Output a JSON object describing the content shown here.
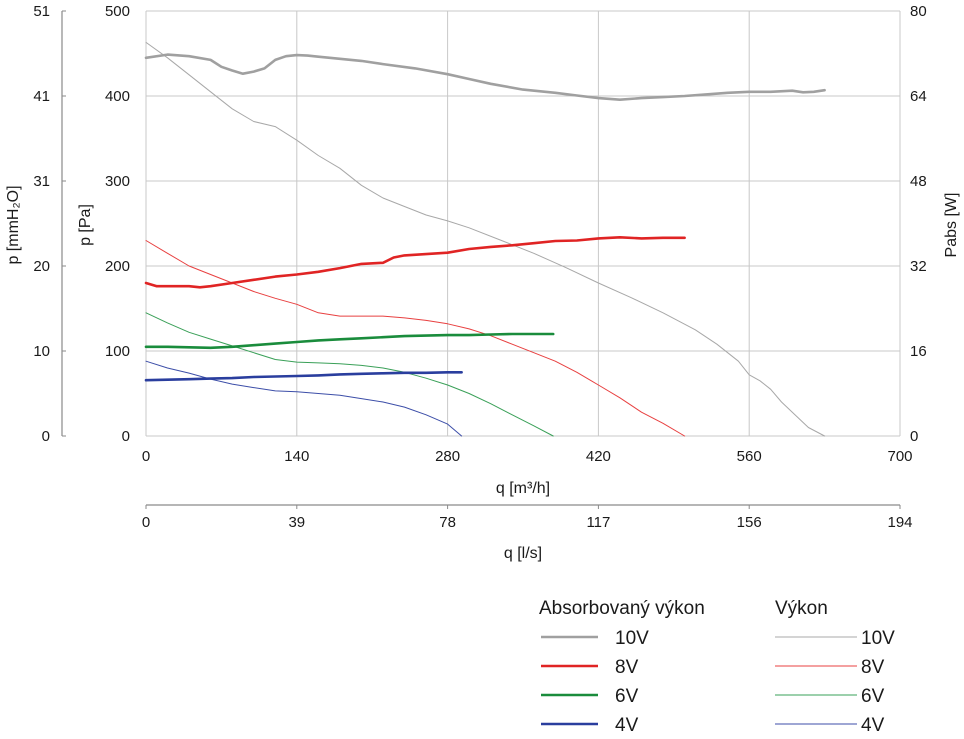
{
  "chart_data": {
    "type": "line",
    "axes": {
      "x_primary": {
        "label": "q [m³/h]",
        "ticks": [
          "0",
          "140",
          "280",
          "420",
          "560",
          "700"
        ],
        "range": [
          0,
          700
        ]
      },
      "x_secondary": {
        "label": "q [l/s]",
        "ticks": [
          "0",
          "39",
          "78",
          "117",
          "156",
          "194"
        ],
        "range": [
          0,
          194
        ]
      },
      "y_pa": {
        "label": "p [Pa]",
        "ticks": [
          "0",
          "100",
          "200",
          "300",
          "400",
          "500"
        ],
        "range": [
          0,
          500
        ]
      },
      "y_mmh2o": {
        "label": "p [mmH₂O]",
        "ticks": [
          "0",
          "10",
          "20",
          "31",
          "41",
          "51"
        ]
      },
      "y_w": {
        "label": "Pabs [W]",
        "ticks": [
          "0",
          "16",
          "32",
          "48",
          "64",
          "80"
        ],
        "range": [
          0,
          80
        ]
      }
    },
    "grid": true,
    "legend": {
      "titles": [
        "Absorbovaný výkon",
        "Výkon"
      ],
      "absorbed_labels": [
        "10V",
        "8V",
        "6V",
        "4V"
      ],
      "pressure_labels": [
        "10V",
        "8V",
        "6V",
        "4V"
      ]
    },
    "series": [
      {
        "name": "10V",
        "group": "absorbed",
        "axis": "W",
        "color": "#a0a0a0",
        "x": [
          0,
          20,
          40,
          60,
          70,
          80,
          90,
          100,
          110,
          120,
          130,
          140,
          150,
          160,
          180,
          200,
          220,
          250,
          280,
          300,
          320,
          350,
          380,
          400,
          420,
          440,
          460,
          480,
          500,
          520,
          540,
          560,
          580,
          600,
          610,
          620,
          630
        ],
        "y": [
          71.2,
          71.8,
          71.5,
          70.8,
          69.5,
          68.8,
          68.2,
          68.6,
          69.2,
          70.8,
          71.5,
          71.7,
          71.6,
          71.4,
          71.0,
          70.6,
          70.0,
          69.2,
          68.1,
          67.2,
          66.3,
          65.2,
          64.6,
          64.1,
          63.6,
          63.3,
          63.6,
          63.8,
          64.0,
          64.3,
          64.6,
          64.8,
          64.8,
          65.0,
          64.7,
          64.8,
          65.1
        ]
      },
      {
        "name": "8V",
        "group": "absorbed",
        "axis": "W",
        "color": "#e02424",
        "x": [
          0,
          10,
          20,
          40,
          50,
          60,
          80,
          100,
          120,
          140,
          160,
          180,
          200,
          220,
          230,
          240,
          280,
          300,
          320,
          340,
          360,
          380,
          400,
          420,
          440,
          460,
          480,
          500
        ],
        "y": [
          28.8,
          28.2,
          28.2,
          28.2,
          28.0,
          28.2,
          28.8,
          29.4,
          30.0,
          30.4,
          30.9,
          31.6,
          32.4,
          32.6,
          33.6,
          34.0,
          34.5,
          35.2,
          35.6,
          35.9,
          36.3,
          36.7,
          36.8,
          37.2,
          37.4,
          37.2,
          37.3,
          37.3
        ]
      },
      {
        "name": "6V",
        "group": "absorbed",
        "axis": "W",
        "color": "#1a8c3c",
        "x": [
          0,
          20,
          40,
          60,
          80,
          100,
          120,
          140,
          160,
          180,
          200,
          220,
          240,
          260,
          280,
          300,
          320,
          340,
          360,
          378
        ],
        "y": [
          16.8,
          16.8,
          16.7,
          16.6,
          16.8,
          17.1,
          17.4,
          17.7,
          18.0,
          18.2,
          18.4,
          18.6,
          18.8,
          18.9,
          19.0,
          19.0,
          19.1,
          19.2,
          19.2,
          19.2
        ]
      },
      {
        "name": "4V",
        "group": "absorbed",
        "axis": "W",
        "color": "#2a3e9e",
        "x": [
          0,
          20,
          40,
          60,
          80,
          100,
          120,
          140,
          160,
          180,
          200,
          220,
          240,
          260,
          280,
          293
        ],
        "y": [
          10.5,
          10.6,
          10.7,
          10.8,
          10.9,
          11.1,
          11.2,
          11.3,
          11.4,
          11.6,
          11.7,
          11.8,
          11.9,
          11.9,
          12.0,
          12.0
        ]
      },
      {
        "name": "10V",
        "group": "pressure",
        "axis": "Pa",
        "color": "#a8a8a8",
        "x": [
          0,
          20,
          40,
          60,
          80,
          100,
          120,
          140,
          160,
          180,
          200,
          220,
          240,
          260,
          280,
          300,
          330,
          360,
          390,
          420,
          450,
          480,
          510,
          530,
          550,
          560,
          570,
          580,
          590,
          600,
          615,
          630
        ],
        "y": [
          463,
          445,
          425,
          405,
          385,
          370,
          364,
          348,
          330,
          315,
          295,
          280,
          270,
          260,
          253,
          245,
          230,
          215,
          198,
          180,
          163,
          145,
          125,
          108,
          88,
          72,
          65,
          55,
          40,
          28,
          10,
          0
        ]
      },
      {
        "name": "8V",
        "group": "pressure",
        "axis": "Pa",
        "color": "#e84040",
        "x": [
          0,
          20,
          40,
          60,
          80,
          100,
          120,
          140,
          160,
          180,
          200,
          220,
          240,
          260,
          280,
          300,
          320,
          340,
          360,
          380,
          400,
          420,
          440,
          460,
          480,
          500
        ],
        "y": [
          230,
          215,
          200,
          190,
          180,
          170,
          162,
          155,
          145,
          141,
          141,
          141,
          139,
          136,
          132,
          126,
          118,
          108,
          98,
          88,
          75,
          60,
          45,
          28,
          15,
          0
        ]
      },
      {
        "name": "6V",
        "group": "pressure",
        "axis": "Pa",
        "color": "#3aa058",
        "x": [
          0,
          20,
          40,
          60,
          80,
          100,
          120,
          140,
          160,
          180,
          200,
          220,
          240,
          260,
          280,
          300,
          320,
          340,
          360,
          378
        ],
        "y": [
          145,
          133,
          122,
          114,
          106,
          98,
          90,
          87,
          86,
          85,
          83,
          80,
          75,
          68,
          60,
          50,
          38,
          25,
          12,
          0
        ]
      },
      {
        "name": "4V",
        "group": "pressure",
        "axis": "Pa",
        "color": "#3c4ea8",
        "x": [
          0,
          20,
          40,
          60,
          80,
          100,
          120,
          140,
          160,
          180,
          200,
          220,
          240,
          260,
          280,
          293
        ],
        "y": [
          88,
          80,
          74,
          67,
          61,
          57,
          53,
          52,
          50,
          48,
          44,
          40,
          34,
          25,
          14,
          0
        ]
      }
    ]
  }
}
